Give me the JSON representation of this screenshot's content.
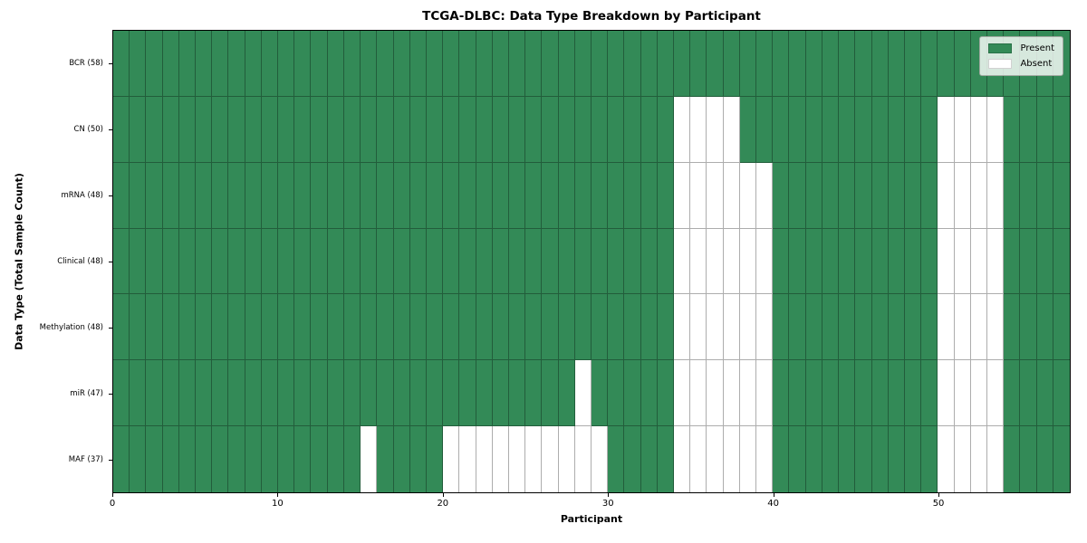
{
  "colors": {
    "present": "#338A57",
    "absent": "#FFFFFF",
    "grid_line": "rgba(0,0,0,0.32)",
    "plot_border": "#000000",
    "legend_background": "rgba(255,255,255,0.8)"
  },
  "chart_data": {
    "type": "heatmap",
    "title": "TCGA-DLBC: Data Type Breakdown by Participant",
    "xlabel": "Participant",
    "ylabel": "Data Type (Total Sample Count)",
    "n_participants": 58,
    "xlim": [
      0,
      58
    ],
    "x_ticks": [
      0,
      10,
      20,
      30,
      40,
      50
    ],
    "grid": true,
    "legend": {
      "position": "upper right",
      "entries": [
        {
          "label": "Present",
          "color": "#338A57"
        },
        {
          "label": "Absent",
          "color": "#FFFFFF"
        }
      ]
    },
    "rows": [
      {
        "label": "BCR (58)",
        "data_type": "BCR",
        "total_samples": 58,
        "absent_participants": []
      },
      {
        "label": "CN (50)",
        "data_type": "CN",
        "total_samples": 50,
        "absent_participants": [
          34,
          35,
          36,
          37,
          50,
          51,
          52,
          53
        ]
      },
      {
        "label": "mRNA (48)",
        "data_type": "mRNA",
        "total_samples": 48,
        "absent_participants": [
          34,
          35,
          36,
          37,
          38,
          39,
          50,
          51,
          52,
          53
        ]
      },
      {
        "label": "Clinical (48)",
        "data_type": "Clinical",
        "total_samples": 48,
        "absent_participants": [
          34,
          35,
          36,
          37,
          38,
          39,
          50,
          51,
          52,
          53
        ]
      },
      {
        "label": "Methylation (48)",
        "data_type": "Methylation",
        "total_samples": 48,
        "absent_participants": [
          34,
          35,
          36,
          37,
          38,
          39,
          50,
          51,
          52,
          53
        ]
      },
      {
        "label": "miR (47)",
        "data_type": "miR",
        "total_samples": 47,
        "absent_participants": [
          28,
          34,
          35,
          36,
          37,
          38,
          39,
          50,
          51,
          52,
          53
        ]
      },
      {
        "label": "MAF (37)",
        "data_type": "MAF",
        "total_samples": 37,
        "absent_participants": [
          15,
          20,
          21,
          22,
          23,
          24,
          25,
          26,
          27,
          28,
          29,
          34,
          35,
          36,
          37,
          38,
          39,
          50,
          51,
          52,
          53
        ]
      }
    ]
  }
}
